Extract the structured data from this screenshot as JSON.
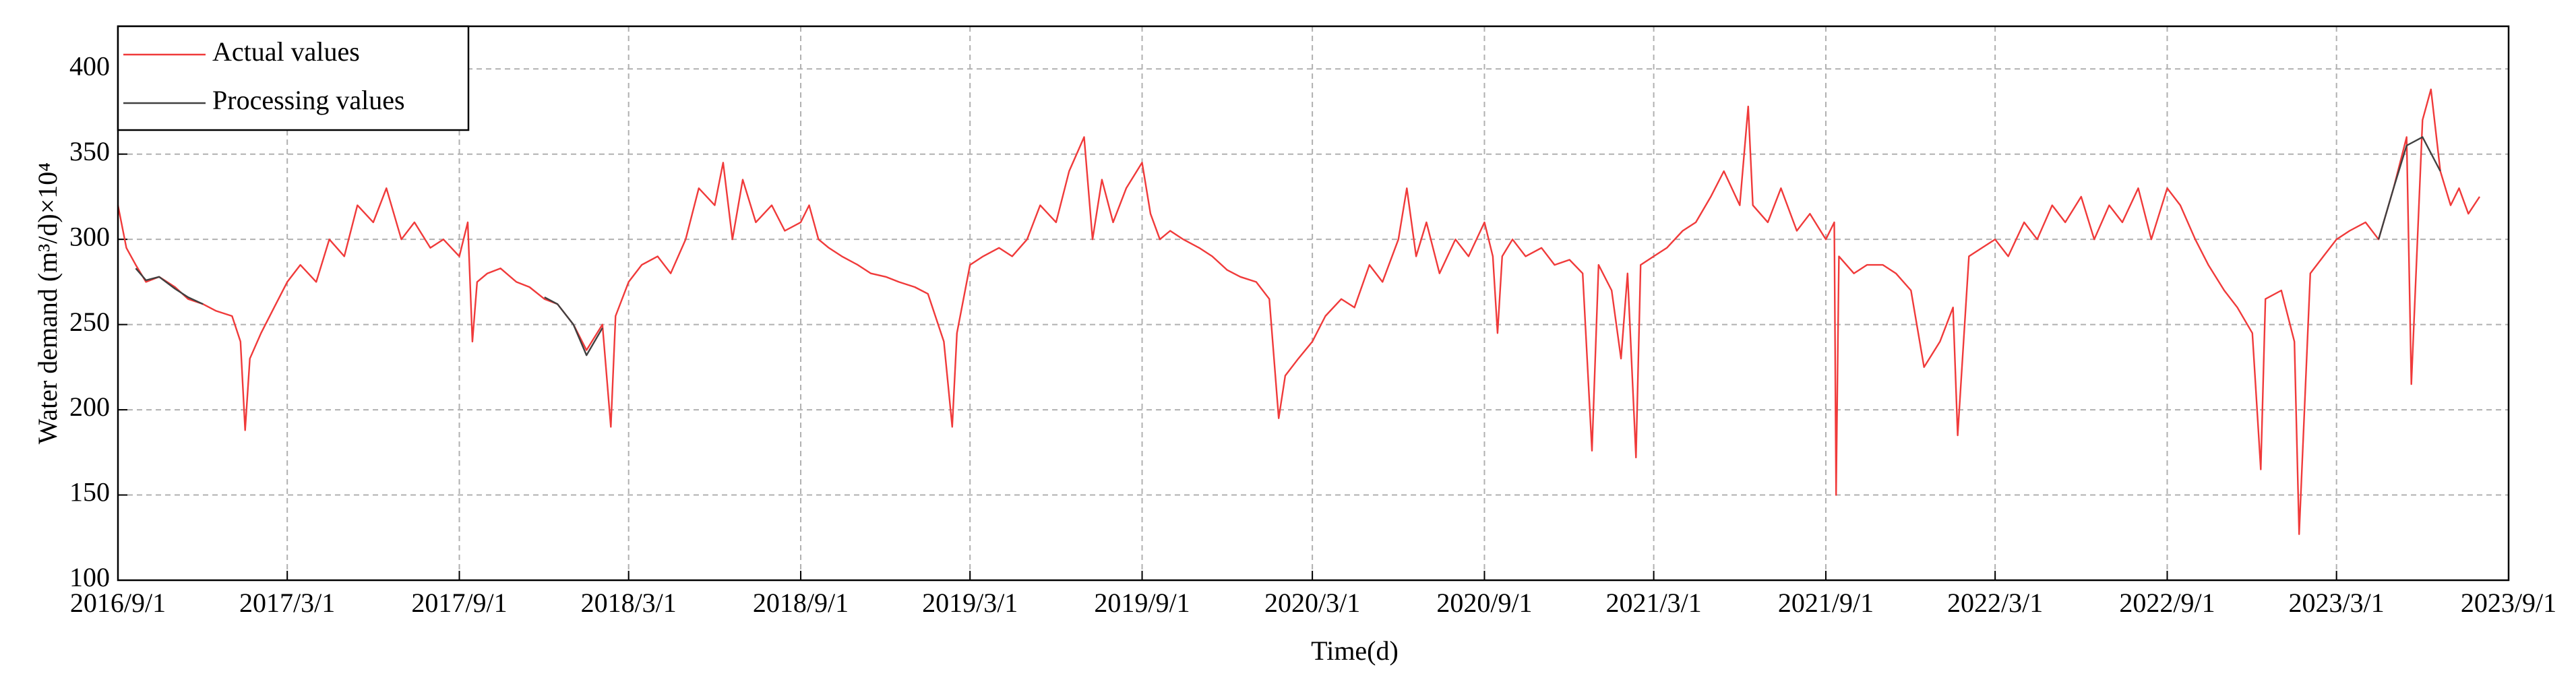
{
  "chart_data": {
    "type": "line",
    "ylabel": "Water demand (m³/d)×10⁴",
    "xlabel": "Time(d)",
    "xlim": [
      "2016/9/1",
      "2023/9/1"
    ],
    "xticks": [
      "2016/9/1",
      "2017/3/1",
      "2017/9/1",
      "2018/3/1",
      "2018/9/1",
      "2019/3/1",
      "2019/9/1",
      "2020/3/1",
      "2020/9/1",
      "2021/3/1",
      "2021/9/1",
      "2022/3/1",
      "2022/9/1",
      "2023/3/1",
      "2023/9/1"
    ],
    "ylim": [
      100,
      425
    ],
    "yticks": [
      100,
      150,
      200,
      250,
      300,
      350,
      400
    ],
    "grid": true,
    "legend": "upper left",
    "series": [
      {
        "name": "Actual values",
        "color": "#f03a3a",
        "x": [
          "2016/9/1",
          "2016/9/10",
          "2016/9/20",
          "2016/10/1",
          "2016/10/15",
          "2016/11/1",
          "2016/11/15",
          "2016/12/1",
          "2016/12/15",
          "2017/1/1",
          "2017/1/10",
          "2017/1/15",
          "2017/1/20",
          "2017/2/1",
          "2017/2/15",
          "2017/3/1",
          "2017/3/15",
          "2017/4/1",
          "2017/4/15",
          "2017/5/1",
          "2017/5/15",
          "2017/6/1",
          "2017/6/15",
          "2017/7/1",
          "2017/7/15",
          "2017/8/1",
          "2017/8/15",
          "2017/9/1",
          "2017/9/10",
          "2017/9/15",
          "2017/9/20",
          "2017/10/1",
          "2017/10/15",
          "2017/11/1",
          "2017/11/15",
          "2017/12/1",
          "2017/12/15",
          "2018/1/1",
          "2018/1/15",
          "2018/2/1",
          "2018/2/10",
          "2018/2/15",
          "2018/3/1",
          "2018/3/15",
          "2018/4/1",
          "2018/4/15",
          "2018/5/1",
          "2018/5/15",
          "2018/6/1",
          "2018/6/10",
          "2018/6/20",
          "2018/7/1",
          "2018/7/15",
          "2018/8/1",
          "2018/8/15",
          "2018/9/1",
          "2018/9/10",
          "2018/9/20",
          "2018/10/1",
          "2018/10/15",
          "2018/11/1",
          "2018/11/15",
          "2018/12/1",
          "2018/12/15",
          "2019/1/1",
          "2019/1/15",
          "2019/2/1",
          "2019/2/10",
          "2019/2/15",
          "2019/3/1",
          "2019/3/15",
          "2019/4/1",
          "2019/4/15",
          "2019/5/1",
          "2019/5/15",
          "2019/6/1",
          "2019/6/15",
          "2019/7/1",
          "2019/7/10",
          "2019/7/20",
          "2019/8/1",
          "2019/8/15",
          "2019/9/1",
          "2019/9/10",
          "2019/9/20",
          "2019/10/1",
          "2019/10/15",
          "2019/11/1",
          "2019/11/15",
          "2019/12/1",
          "2019/12/15",
          "2020/1/1",
          "2020/1/15",
          "2020/1/25",
          "2020/2/1",
          "2020/2/15",
          "2020/3/1",
          "2020/3/15",
          "2020/4/1",
          "2020/4/15",
          "2020/5/1",
          "2020/5/15",
          "2020/6/1",
          "2020/6/10",
          "2020/6/20",
          "2020/7/1",
          "2020/7/15",
          "2020/8/1",
          "2020/8/15",
          "2020/9/1",
          "2020/9/10",
          "2020/9/15",
          "2020/9/20",
          "2020/10/1",
          "2020/10/15",
          "2020/11/1",
          "2020/11/15",
          "2020/12/1",
          "2020/12/15",
          "2020/12/25",
          "2021/1/1",
          "2021/1/15",
          "2021/1/25",
          "2021/2/1",
          "2021/2/10",
          "2021/2/15",
          "2021/3/1",
          "2021/3/15",
          "2021/4/1",
          "2021/4/15",
          "2021/5/1",
          "2021/5/15",
          "2021/6/1",
          "2021/6/10",
          "2021/6/15",
          "2021/7/1",
          "2021/7/15",
          "2021/8/1",
          "2021/8/15",
          "2021/9/1",
          "2021/9/10",
          "2021/9/12",
          "2021/9/15",
          "2021/10/1",
          "2021/10/15",
          "2021/11/1",
          "2021/11/15",
          "2021/12/1",
          "2021/12/15",
          "2022/1/1",
          "2022/1/15",
          "2022/1/20",
          "2022/2/1",
          "2022/2/15",
          "2022/3/1",
          "2022/3/15",
          "2022/4/1",
          "2022/4/15",
          "2022/5/1",
          "2022/5/15",
          "2022/6/1",
          "2022/6/15",
          "2022/7/1",
          "2022/7/15",
          "2022/8/1",
          "2022/8/15",
          "2022/9/1",
          "2022/9/15",
          "2022/10/1",
          "2022/10/15",
          "2022/11/1",
          "2022/11/15",
          "2022/12/1",
          "2022/12/10",
          "2022/12/15",
          "2023/1/1",
          "2023/1/15",
          "2023/1/20",
          "2023/2/1",
          "2023/2/15",
          "2023/3/1",
          "2023/3/15",
          "2023/4/1",
          "2023/4/15",
          "2023/5/1",
          "2023/5/15",
          "2023/5/20",
          "2023/6/1",
          "2023/6/10",
          "2023/6/20",
          "2023/7/1",
          "2023/7/10",
          "2023/7/20",
          "2023/8/1"
        ],
        "values": [
          320,
          295,
          285,
          275,
          278,
          272,
          265,
          262,
          258,
          255,
          240,
          188,
          230,
          245,
          260,
          275,
          285,
          275,
          300,
          290,
          320,
          310,
          330,
          300,
          310,
          295,
          300,
          290,
          310,
          240,
          275,
          280,
          283,
          275,
          272,
          265,
          262,
          250,
          235,
          250,
          190,
          255,
          275,
          285,
          290,
          280,
          300,
          330,
          320,
          345,
          300,
          335,
          310,
          320,
          305,
          310,
          320,
          300,
          295,
          290,
          285,
          280,
          278,
          275,
          272,
          268,
          240,
          190,
          245,
          285,
          290,
          295,
          290,
          300,
          320,
          310,
          340,
          360,
          300,
          335,
          310,
          330,
          345,
          315,
          300,
          305,
          300,
          295,
          290,
          282,
          278,
          275,
          265,
          195,
          220,
          230,
          240,
          255,
          265,
          260,
          285,
          275,
          300,
          330,
          290,
          310,
          280,
          300,
          290,
          310,
          290,
          245,
          290,
          300,
          290,
          295,
          285,
          288,
          280,
          176,
          285,
          270,
          230,
          280,
          172,
          285,
          290,
          295,
          305,
          310,
          325,
          340,
          320,
          378,
          320,
          310,
          330,
          305,
          315,
          300,
          310,
          150,
          290,
          280,
          285,
          285,
          280,
          270,
          225,
          240,
          260,
          185,
          290,
          295,
          300,
          290,
          310,
          300,
          320,
          310,
          325,
          300,
          320,
          310,
          330,
          300,
          330,
          320,
          300,
          285,
          270,
          260,
          245,
          165,
          265,
          270,
          240,
          127,
          280,
          290,
          300,
          305,
          310,
          300,
          330,
          360,
          215,
          370,
          388,
          340,
          320,
          330,
          315,
          325
        ]
      },
      {
        "name": "Processing values",
        "color": "#404040",
        "x": [
          "2016/9/20",
          "2016/10/1",
          "2016/10/15",
          "2016/11/1",
          "2016/11/15",
          "2016/12/1",
          null,
          "2017/12/1",
          "2017/12/15",
          "2018/1/1",
          "2018/1/15",
          "2018/2/1",
          null,
          "2023/4/15",
          "2023/5/1",
          "2023/5/15",
          "2023/6/1",
          "2023/6/20"
        ],
        "values": [
          283,
          276,
          278,
          271,
          266,
          262,
          null,
          266,
          262,
          250,
          232,
          248,
          null,
          300,
          330,
          355,
          360,
          340
        ]
      }
    ]
  }
}
